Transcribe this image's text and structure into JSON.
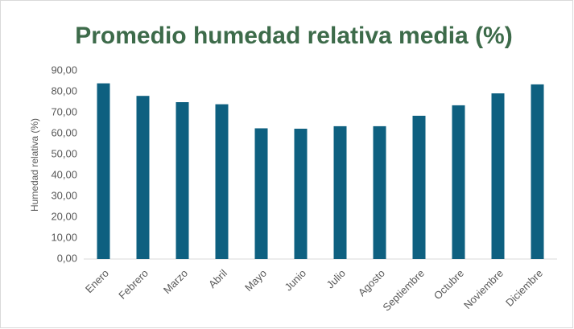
{
  "chart_data": {
    "type": "bar",
    "title": "Promedio humedad relativa media (%)",
    "y_label": "Humedad relativa (%)",
    "categories": [
      "Enero",
      "Febrero",
      "Marzo",
      "Abril",
      "Mayo",
      "Junio",
      "Julio",
      "Agosto",
      "Septiembre",
      "Octubre",
      "Noviembre",
      "Diciembre"
    ],
    "values": [
      84,
      78,
      75,
      74,
      62.5,
      62.3,
      63.5,
      63.5,
      68.5,
      73.5,
      79.2,
      83.5
    ],
    "color": "#0e6080",
    "ylim": [
      0,
      90
    ],
    "yticks": [
      {
        "value": 0,
        "label": "0,00"
      },
      {
        "value": 10,
        "label": "10,00"
      },
      {
        "value": 20,
        "label": "20,00"
      },
      {
        "value": 30,
        "label": "30,00"
      },
      {
        "value": 40,
        "label": "40,00"
      },
      {
        "value": 50,
        "label": "50,00"
      },
      {
        "value": 60,
        "label": "60,00"
      },
      {
        "value": 70,
        "label": "70,00"
      },
      {
        "value": 80,
        "label": "80,00"
      },
      {
        "value": 90,
        "label": "90,00"
      }
    ],
    "grid": false
  }
}
